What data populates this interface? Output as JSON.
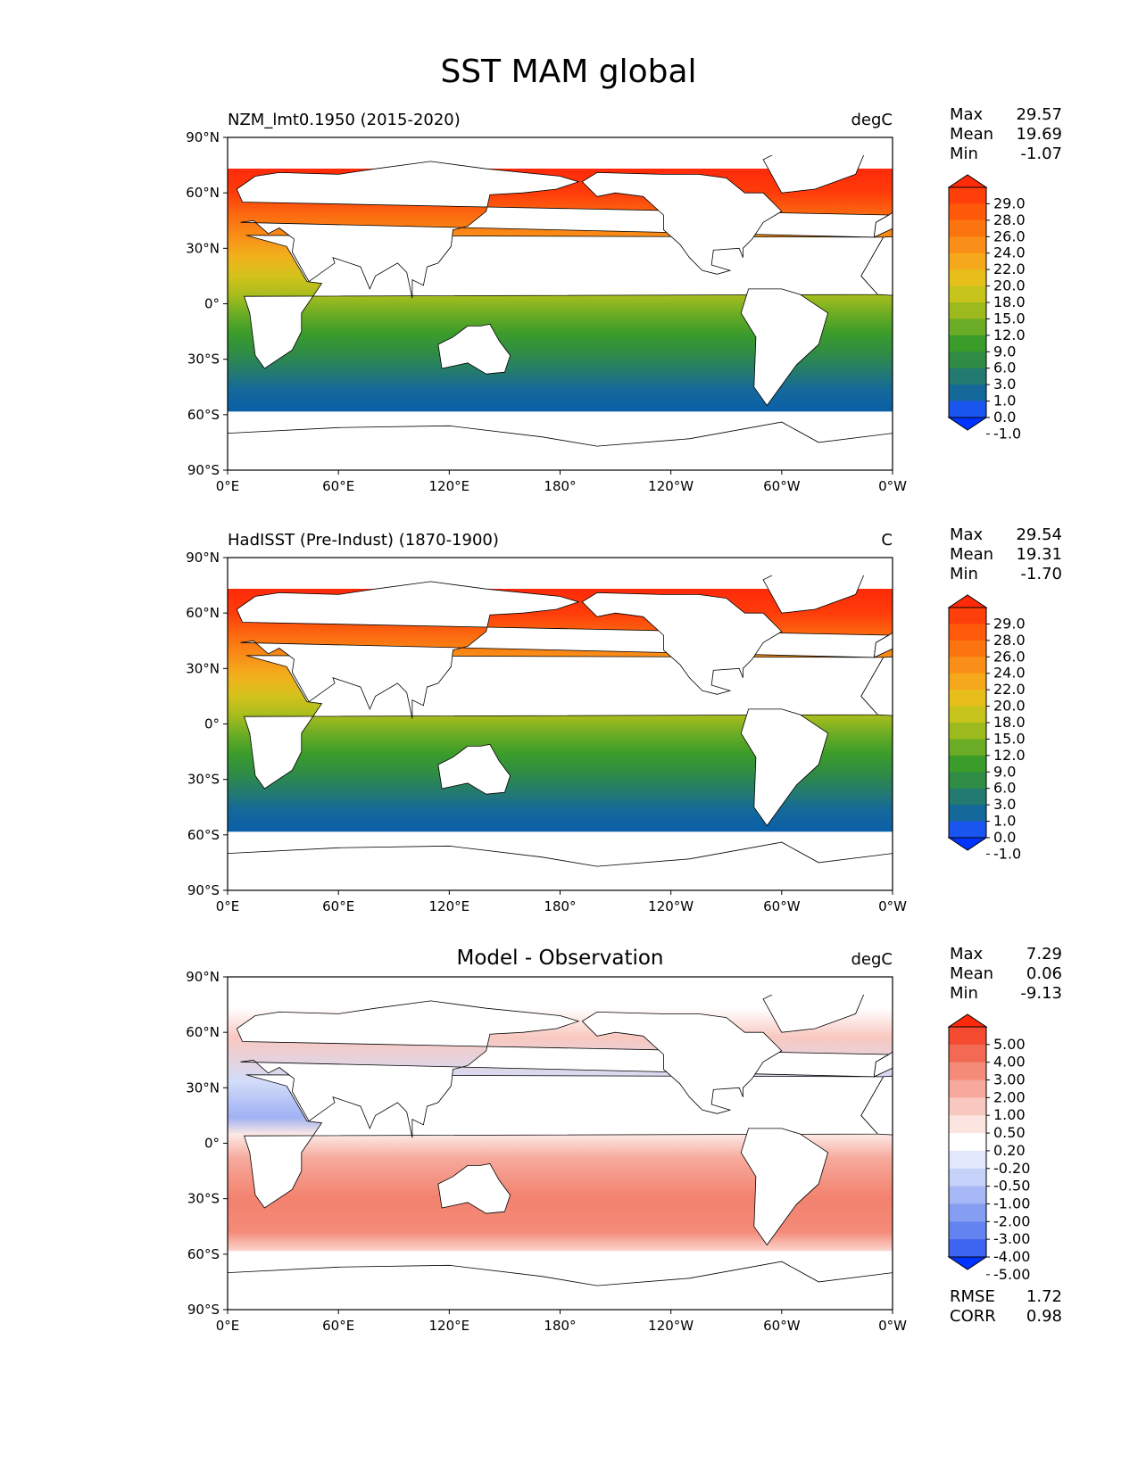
{
  "title": "SST MAM global",
  "axis": {
    "lat_ticks": [
      "90°N",
      "60°N",
      "30°N",
      "0°",
      "30°S",
      "60°S",
      "90°S"
    ],
    "lon_ticks": [
      "0°E",
      "60°E",
      "120°E",
      "180°",
      "120°W",
      "60°W",
      "0°W"
    ]
  },
  "chart_data": [
    {
      "type": "heatmap",
      "name": "model",
      "title_left": "NZM_lmt0.1950 (2015-2020)",
      "title_center": "",
      "units": "degC",
      "stats": [
        {
          "label": "Max",
          "value": "29.57"
        },
        {
          "label": "Mean",
          "value": "19.69"
        },
        {
          "label": "Min",
          "value": "-1.07"
        }
      ],
      "colorbar_levels": [
        "29.0",
        "28.0",
        "26.0",
        "24.0",
        "22.0",
        "20.0",
        "18.0",
        "15.0",
        "12.0",
        "9.0",
        "6.0",
        "3.0",
        "1.0",
        "0.0",
        "-1.0"
      ],
      "colorbar_colors": [
        "#ff2a0a",
        "#ff3f0a",
        "#ff5a0a",
        "#fb7410",
        "#f98f18",
        "#f5a81c",
        "#e8bf1a",
        "#c6c41c",
        "#9cba1d",
        "#6aac25",
        "#3b9c2a",
        "#2f8c45",
        "#237a70",
        "#15699a",
        "#1a55f0",
        "#0033ff"
      ],
      "range": [
        -1.07,
        29.57
      ],
      "xlim": [
        0,
        360
      ],
      "ylim": [
        -90,
        90
      ]
    },
    {
      "type": "heatmap",
      "name": "observation",
      "title_left": "HadISST (Pre-Indust) (1870-1900)",
      "title_center": "",
      "units": "C",
      "stats": [
        {
          "label": "Max",
          "value": "29.54"
        },
        {
          "label": "Mean",
          "value": "19.31"
        },
        {
          "label": "Min",
          "value": "-1.70"
        }
      ],
      "colorbar_levels": [
        "29.0",
        "28.0",
        "26.0",
        "24.0",
        "22.0",
        "20.0",
        "18.0",
        "15.0",
        "12.0",
        "9.0",
        "6.0",
        "3.0",
        "1.0",
        "0.0",
        "-1.0"
      ],
      "colorbar_colors": [
        "#ff2a0a",
        "#ff3f0a",
        "#ff5a0a",
        "#fb7410",
        "#f98f18",
        "#f5a81c",
        "#e8bf1a",
        "#c6c41c",
        "#9cba1d",
        "#6aac25",
        "#3b9c2a",
        "#2f8c45",
        "#237a70",
        "#15699a",
        "#1a55f0",
        "#0033ff"
      ],
      "range": [
        -1.7,
        29.54
      ],
      "xlim": [
        0,
        360
      ],
      "ylim": [
        -90,
        90
      ]
    },
    {
      "type": "heatmap",
      "name": "difference",
      "title_left": "",
      "title_center": "Model - Observation",
      "units": "degC",
      "stats": [
        {
          "label": "Max",
          "value": "7.29"
        },
        {
          "label": "Mean",
          "value": "0.06"
        },
        {
          "label": "Min",
          "value": "-9.13"
        }
      ],
      "colorbar_levels": [
        "5.00",
        "4.00",
        "3.00",
        "2.00",
        "1.00",
        "0.50",
        "0.20",
        "-0.20",
        "-0.50",
        "-1.00",
        "-2.00",
        "-3.00",
        "-4.00",
        "-5.00"
      ],
      "colorbar_colors": [
        "#ff2a0a",
        "#f44a30",
        "#f26a54",
        "#f48a78",
        "#f6a99c",
        "#f9c8c0",
        "#fce4e0",
        "#ffffff",
        "#e2e8fc",
        "#c6d2f9",
        "#a6b8f5",
        "#859ef2",
        "#6384f0",
        "#3e64f2",
        "#0033ff"
      ],
      "range": [
        -9.13,
        7.29
      ],
      "metrics": [
        {
          "label": "RMSE",
          "value": "1.72"
        },
        {
          "label": "CORR",
          "value": "0.98"
        }
      ],
      "xlim": [
        0,
        360
      ],
      "ylim": [
        -90,
        90
      ]
    }
  ]
}
